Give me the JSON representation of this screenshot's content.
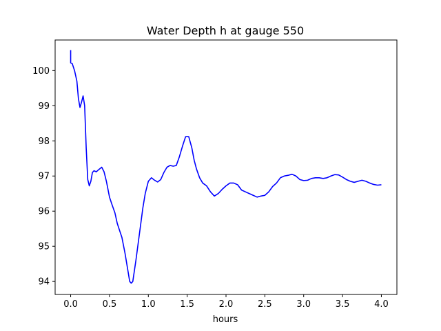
{
  "chart_data": {
    "type": "line",
    "title": "Water Depth h at gauge 550",
    "xlabel": "hours",
    "ylabel": "",
    "xlim": [
      -0.2,
      4.2
    ],
    "ylim": [
      93.63,
      100.87
    ],
    "x_ticks": [
      0.0,
      0.5,
      1.0,
      1.5,
      2.0,
      2.5,
      3.0,
      3.5,
      4.0
    ],
    "x_tick_labels": [
      "0.0",
      "0.5",
      "1.0",
      "1.5",
      "2.0",
      "2.5",
      "3.0",
      "3.5",
      "4.0"
    ],
    "y_ticks": [
      94,
      95,
      96,
      97,
      98,
      99,
      100
    ],
    "y_tick_labels": [
      "94",
      "95",
      "96",
      "97",
      "98",
      "99",
      "100"
    ],
    "grid": false,
    "legend": "none",
    "series": [
      {
        "color": "#0000ff",
        "x": [
          0.0,
          0.0,
          0.0,
          0.02,
          0.05,
          0.08,
          0.1,
          0.12,
          0.14,
          0.16,
          0.18,
          0.2,
          0.22,
          0.24,
          0.26,
          0.28,
          0.3,
          0.33,
          0.36,
          0.4,
          0.43,
          0.46,
          0.5,
          0.53,
          0.57,
          0.6,
          0.63,
          0.66,
          0.7,
          0.73,
          0.76,
          0.78,
          0.8,
          0.82,
          0.84,
          0.87,
          0.9,
          0.93,
          0.96,
          1.0,
          1.04,
          1.08,
          1.12,
          1.16,
          1.2,
          1.24,
          1.28,
          1.32,
          1.36,
          1.4,
          1.44,
          1.48,
          1.52,
          1.56,
          1.59,
          1.62,
          1.66,
          1.7,
          1.75,
          1.8,
          1.85,
          1.9,
          1.95,
          2.0,
          2.05,
          2.1,
          2.15,
          2.2,
          2.25,
          2.3,
          2.35,
          2.4,
          2.45,
          2.5,
          2.55,
          2.6,
          2.65,
          2.7,
          2.75,
          2.8,
          2.85,
          2.9,
          2.95,
          3.0,
          3.05,
          3.1,
          3.15,
          3.2,
          3.25,
          3.3,
          3.35,
          3.4,
          3.45,
          3.5,
          3.55,
          3.6,
          3.65,
          3.7,
          3.75,
          3.8,
          3.85,
          3.9,
          3.95,
          4.0
        ],
        "values": [
          100.58,
          100.22,
          100.22,
          100.2,
          100.0,
          99.7,
          99.2,
          98.95,
          99.1,
          99.28,
          99.0,
          97.8,
          96.9,
          96.72,
          96.85,
          97.1,
          97.15,
          97.12,
          97.18,
          97.25,
          97.12,
          96.85,
          96.4,
          96.2,
          95.95,
          95.65,
          95.45,
          95.25,
          94.8,
          94.4,
          94.0,
          93.95,
          94.0,
          94.3,
          94.6,
          95.1,
          95.6,
          96.1,
          96.5,
          96.85,
          96.95,
          96.88,
          96.83,
          96.9,
          97.1,
          97.25,
          97.3,
          97.28,
          97.3,
          97.55,
          97.85,
          98.12,
          98.12,
          97.8,
          97.45,
          97.2,
          96.95,
          96.8,
          96.72,
          96.55,
          96.43,
          96.5,
          96.62,
          96.72,
          96.8,
          96.8,
          96.75,
          96.6,
          96.55,
          96.5,
          96.45,
          96.4,
          96.43,
          96.45,
          96.55,
          96.7,
          96.8,
          96.95,
          97.0,
          97.02,
          97.05,
          97.0,
          96.9,
          96.87,
          96.88,
          96.93,
          96.95,
          96.95,
          96.93,
          96.95,
          97.0,
          97.04,
          97.03,
          96.97,
          96.9,
          96.85,
          96.82,
          96.85,
          96.88,
          96.85,
          96.8,
          96.76,
          96.74,
          96.75
        ]
      }
    ]
  }
}
